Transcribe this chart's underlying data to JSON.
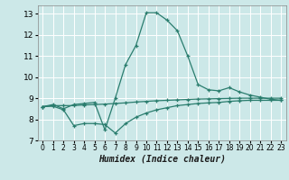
{
  "xlabel": "Humidex (Indice chaleur)",
  "bg_color": "#cce8e8",
  "grid_color": "#ffffff",
  "line_color": "#2a7d6e",
  "xlim": [
    -0.5,
    23.5
  ],
  "ylim": [
    7,
    13.4
  ],
  "xticks": [
    0,
    1,
    2,
    3,
    4,
    5,
    6,
    7,
    8,
    9,
    10,
    11,
    12,
    13,
    14,
    15,
    16,
    17,
    18,
    19,
    20,
    21,
    22,
    23
  ],
  "yticks": [
    7,
    8,
    9,
    10,
    11,
    12,
    13
  ],
  "curve1_x": [
    0,
    1,
    2,
    3,
    4,
    5,
    6,
    7,
    8,
    9,
    10,
    11,
    12,
    13,
    14,
    15,
    16,
    17,
    18,
    19,
    20,
    21,
    22,
    23
  ],
  "curve1_y": [
    8.6,
    8.7,
    8.5,
    8.7,
    8.75,
    8.8,
    7.5,
    9.0,
    10.6,
    11.5,
    13.05,
    13.05,
    12.7,
    12.2,
    11.0,
    9.65,
    9.4,
    9.35,
    9.5,
    9.3,
    9.15,
    9.05,
    8.95,
    8.9
  ],
  "curve2_x": [
    0,
    1,
    2,
    3,
    4,
    5,
    6,
    7,
    8,
    9,
    10,
    11,
    12,
    13,
    14,
    15,
    16,
    17,
    18,
    19,
    20,
    21,
    22,
    23
  ],
  "curve2_y": [
    8.6,
    8.65,
    8.65,
    8.65,
    8.68,
    8.7,
    8.72,
    8.75,
    8.78,
    8.82,
    8.85,
    8.88,
    8.9,
    8.92,
    8.94,
    8.96,
    8.97,
    8.98,
    8.99,
    9.0,
    9.0,
    9.0,
    9.0,
    9.0
  ],
  "curve3_x": [
    0,
    1,
    2,
    3,
    4,
    5,
    6,
    7,
    8,
    9,
    10,
    11,
    12,
    13,
    14,
    15,
    16,
    17,
    18,
    19,
    20,
    21,
    22,
    23
  ],
  "curve3_y": [
    8.6,
    8.62,
    8.45,
    7.7,
    7.8,
    7.8,
    7.75,
    7.35,
    7.8,
    8.1,
    8.3,
    8.45,
    8.55,
    8.65,
    8.7,
    8.75,
    8.78,
    8.8,
    8.85,
    8.88,
    8.9,
    8.9,
    8.9,
    8.9
  ]
}
